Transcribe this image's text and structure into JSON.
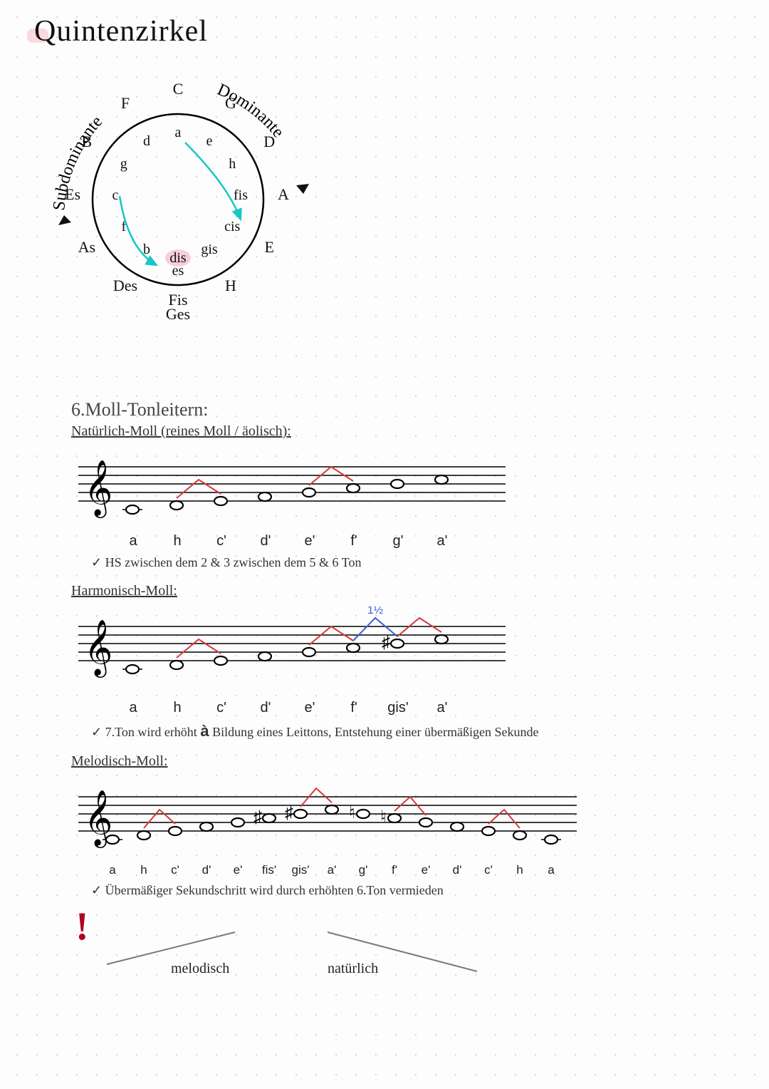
{
  "colors": {
    "bg": "#fdfdfe",
    "dot": "#c8c8d0",
    "ink": "#222222",
    "title": "#111111",
    "heading": "#444444",
    "stafftext": "#333333",
    "redhalf": "#d43a3a",
    "blueint": "#3a5fd4",
    "arrow": "#18c6c6",
    "highlight": "#f3a0b3",
    "excl": "#b00020",
    "grayline": "#7a7a7a"
  },
  "title": "Quintenzirkel",
  "circle": {
    "left_label": "Subdominante",
    "right_label": "Dominante",
    "outer_major": [
      "C",
      "G",
      "D",
      "A",
      "E",
      "H",
      "Fis\nGes",
      "Des",
      "As",
      "Es",
      "B",
      "F"
    ],
    "inner_minor": [
      "a",
      "e",
      "h",
      "fis",
      "cis",
      "gis",
      "dis\nes",
      "b",
      "f",
      "c",
      "g",
      "d"
    ],
    "highlight": "es"
  },
  "section_heading": "6.Moll-Tonleitern:",
  "natural": {
    "title": "Natürlich-Moll (reines Moll / äolisch):",
    "notes": [
      "a",
      "h",
      "c'",
      "d'",
      "e'",
      "f'",
      "g'",
      "a'"
    ],
    "half_steps": [
      [
        1,
        2
      ],
      [
        4,
        5
      ]
    ],
    "bullet": "HS zwischen dem 2 & 3 zwischen dem 5 & 6 Ton",
    "staff_pos": [
      -2,
      -1,
      0,
      1,
      2,
      3,
      4,
      5
    ]
  },
  "harmonic": {
    "title": "Harmonisch-Moll:",
    "notes": [
      "a",
      "h",
      "c'",
      "d'",
      "e'",
      "f'",
      "gis'",
      "a'"
    ],
    "half_steps": [
      [
        1,
        2
      ],
      [
        4,
        5
      ],
      [
        6,
        7
      ]
    ],
    "interval_label": "1½",
    "interval_between": [
      5,
      6
    ],
    "sharp_at": 6,
    "bullet_prefix": "7.Ton wird erhöht ",
    "bullet_arrow": "à",
    "bullet_suffix": " Bildung eines Leittons, Entstehung einer übermäßigen Sekunde",
    "staff_pos": [
      -2,
      -1,
      0,
      1,
      2,
      3,
      4,
      5
    ]
  },
  "melodic": {
    "title": "Melodisch-Moll:",
    "notes": [
      "a",
      "h",
      "c'",
      "d'",
      "e'",
      "fis'",
      "gis'",
      "a'",
      "g'",
      "f'",
      "e'",
      "d'",
      "c'",
      "h",
      "a"
    ],
    "half_steps_up": [
      [
        1,
        2
      ],
      [
        6,
        7
      ]
    ],
    "half_steps_down": [
      [
        9,
        10
      ],
      [
        12,
        13
      ]
    ],
    "sharp_at": [
      5,
      6
    ],
    "natural_at": [
      8,
      9
    ],
    "bullet": "Übermäßiger Sekundschritt wird durch erhöhten 6.Ton vermieden",
    "staff_pos": [
      -2,
      -1,
      0,
      1,
      2,
      3,
      4,
      5,
      4,
      3,
      2,
      1,
      0,
      -1,
      -2
    ],
    "foot_left": "melodisch",
    "foot_right": "natürlich"
  },
  "staff_style": {
    "line_color": "#000000",
    "line_width": 1.5,
    "line_spacing": 12,
    "note_rx": 9,
    "note_ry": 6
  }
}
